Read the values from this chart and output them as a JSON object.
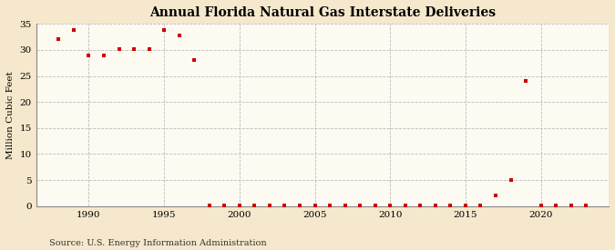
{
  "title": "Annual Florida Natural Gas Interstate Deliveries",
  "ylabel": "Million Cubic Feet",
  "source": "Source: U.S. Energy Information Administration",
  "background_color": "#f5e8cc",
  "plot_background_color": "#fdfaf2",
  "marker_color": "#cc0000",
  "marker": "s",
  "marker_size": 3.5,
  "xlim": [
    1986.5,
    2024.5
  ],
  "ylim": [
    0,
    35
  ],
  "yticks": [
    0,
    5,
    10,
    15,
    20,
    25,
    30,
    35
  ],
  "xticks": [
    1990,
    1995,
    2000,
    2005,
    2010,
    2015,
    2020
  ],
  "years": [
    1988,
    1989,
    1990,
    1991,
    1992,
    1993,
    1994,
    1995,
    1996,
    1997,
    1998,
    1999,
    2000,
    2001,
    2002,
    2003,
    2004,
    2005,
    2006,
    2007,
    2008,
    2009,
    2010,
    2011,
    2012,
    2013,
    2014,
    2015,
    2016,
    2017,
    2018,
    2019,
    2020,
    2021,
    2022,
    2023
  ],
  "values": [
    32.0,
    33.8,
    29.0,
    29.0,
    30.2,
    30.2,
    30.2,
    33.8,
    32.7,
    28.0,
    0.2,
    0.1,
    0.1,
    0.2,
    0.1,
    0.2,
    0.1,
    0.1,
    0.1,
    0.1,
    0.1,
    0.1,
    0.1,
    0.1,
    0.1,
    0.1,
    0.1,
    0.1,
    0.1,
    2.0,
    5.0,
    24.0,
    0.2,
    0.1,
    0.1,
    0.1
  ]
}
